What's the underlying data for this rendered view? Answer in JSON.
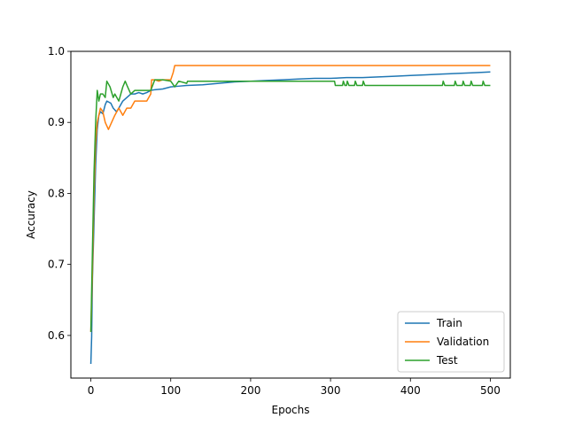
{
  "chart_data": {
    "type": "line",
    "title": "",
    "xlabel": "Epochs",
    "ylabel": "Accuracy",
    "xlim": [
      -25,
      525
    ],
    "ylim": [
      0.54,
      1.0
    ],
    "xticks": [
      0,
      100,
      200,
      300,
      400,
      500
    ],
    "xtick_labels": [
      "0",
      "100",
      "200",
      "300",
      "400",
      "500"
    ],
    "yticks": [
      0.6,
      0.7,
      0.8,
      0.9,
      1.0
    ],
    "ytick_labels": [
      "0.6",
      "0.7",
      "0.8",
      "0.9",
      "1.0"
    ],
    "grid": false,
    "legend_position": "lower-right",
    "series": [
      {
        "name": "Train",
        "color": "#1f77b4",
        "points": [
          [
            0,
            0.56
          ],
          [
            1,
            0.598
          ],
          [
            2,
            0.68
          ],
          [
            4,
            0.76
          ],
          [
            6,
            0.84
          ],
          [
            8,
            0.89
          ],
          [
            10,
            0.91
          ],
          [
            12,
            0.915
          ],
          [
            15,
            0.912
          ],
          [
            18,
            0.925
          ],
          [
            20,
            0.93
          ],
          [
            25,
            0.927
          ],
          [
            28,
            0.92
          ],
          [
            32,
            0.915
          ],
          [
            35,
            0.92
          ],
          [
            40,
            0.93
          ],
          [
            45,
            0.935
          ],
          [
            50,
            0.94
          ],
          [
            55,
            0.94
          ],
          [
            60,
            0.942
          ],
          [
            65,
            0.94
          ],
          [
            70,
            0.942
          ],
          [
            75,
            0.945
          ],
          [
            80,
            0.946
          ],
          [
            90,
            0.947
          ],
          [
            100,
            0.95
          ],
          [
            110,
            0.951
          ],
          [
            120,
            0.952
          ],
          [
            140,
            0.953
          ],
          [
            160,
            0.955
          ],
          [
            180,
            0.957
          ],
          [
            200,
            0.958
          ],
          [
            220,
            0.959
          ],
          [
            240,
            0.96
          ],
          [
            260,
            0.961
          ],
          [
            280,
            0.962
          ],
          [
            300,
            0.962
          ],
          [
            320,
            0.963
          ],
          [
            340,
            0.963
          ],
          [
            360,
            0.964
          ],
          [
            380,
            0.965
          ],
          [
            400,
            0.966
          ],
          [
            420,
            0.967
          ],
          [
            440,
            0.968
          ],
          [
            460,
            0.969
          ],
          [
            480,
            0.97
          ],
          [
            500,
            0.971
          ]
        ]
      },
      {
        "name": "Validation",
        "color": "#ff7f0e",
        "points": [
          [
            0,
            0.605
          ],
          [
            2,
            0.69
          ],
          [
            4,
            0.8
          ],
          [
            6,
            0.87
          ],
          [
            8,
            0.9
          ],
          [
            10,
            0.91
          ],
          [
            12,
            0.92
          ],
          [
            15,
            0.915
          ],
          [
            18,
            0.9
          ],
          [
            22,
            0.89
          ],
          [
            26,
            0.9
          ],
          [
            30,
            0.91
          ],
          [
            35,
            0.92
          ],
          [
            40,
            0.91
          ],
          [
            45,
            0.92
          ],
          [
            50,
            0.92
          ],
          [
            55,
            0.93
          ],
          [
            60,
            0.93
          ],
          [
            65,
            0.93
          ],
          [
            70,
            0.93
          ],
          [
            75,
            0.94
          ],
          [
            76,
            0.96
          ],
          [
            80,
            0.96
          ],
          [
            85,
            0.958
          ],
          [
            90,
            0.96
          ],
          [
            95,
            0.96
          ],
          [
            100,
            0.96
          ],
          [
            103,
            0.97
          ],
          [
            105,
            0.98
          ],
          [
            150,
            0.98
          ],
          [
            200,
            0.98
          ],
          [
            300,
            0.98
          ],
          [
            400,
            0.98
          ],
          [
            500,
            0.98
          ]
        ]
      },
      {
        "name": "Test",
        "color": "#2ca02c",
        "points": [
          [
            0,
            0.605
          ],
          [
            2,
            0.72
          ],
          [
            4,
            0.83
          ],
          [
            6,
            0.9
          ],
          [
            8,
            0.945
          ],
          [
            10,
            0.93
          ],
          [
            12,
            0.94
          ],
          [
            15,
            0.94
          ],
          [
            18,
            0.935
          ],
          [
            20,
            0.958
          ],
          [
            24,
            0.95
          ],
          [
            28,
            0.935
          ],
          [
            30,
            0.94
          ],
          [
            35,
            0.93
          ],
          [
            40,
            0.95
          ],
          [
            43,
            0.958
          ],
          [
            46,
            0.95
          ],
          [
            50,
            0.94
          ],
          [
            55,
            0.945
          ],
          [
            60,
            0.945
          ],
          [
            70,
            0.945
          ],
          [
            75,
            0.945
          ],
          [
            80,
            0.96
          ],
          [
            90,
            0.96
          ],
          [
            100,
            0.958
          ],
          [
            105,
            0.95
          ],
          [
            110,
            0.958
          ],
          [
            120,
            0.955
          ],
          [
            121,
            0.958
          ],
          [
            200,
            0.958
          ],
          [
            305,
            0.958
          ],
          [
            306,
            0.952
          ],
          [
            315,
            0.952
          ],
          [
            316,
            0.958
          ],
          [
            318,
            0.952
          ],
          [
            320,
            0.952
          ],
          [
            321,
            0.958
          ],
          [
            323,
            0.952
          ],
          [
            330,
            0.952
          ],
          [
            331,
            0.958
          ],
          [
            333,
            0.952
          ],
          [
            340,
            0.952
          ],
          [
            341,
            0.958
          ],
          [
            343,
            0.952
          ],
          [
            440,
            0.952
          ],
          [
            441,
            0.958
          ],
          [
            443,
            0.952
          ],
          [
            455,
            0.952
          ],
          [
            456,
            0.958
          ],
          [
            458,
            0.952
          ],
          [
            465,
            0.952
          ],
          [
            466,
            0.958
          ],
          [
            468,
            0.952
          ],
          [
            475,
            0.952
          ],
          [
            476,
            0.958
          ],
          [
            478,
            0.952
          ],
          [
            490,
            0.952
          ],
          [
            491,
            0.958
          ],
          [
            493,
            0.952
          ],
          [
            500,
            0.952
          ]
        ]
      }
    ]
  }
}
